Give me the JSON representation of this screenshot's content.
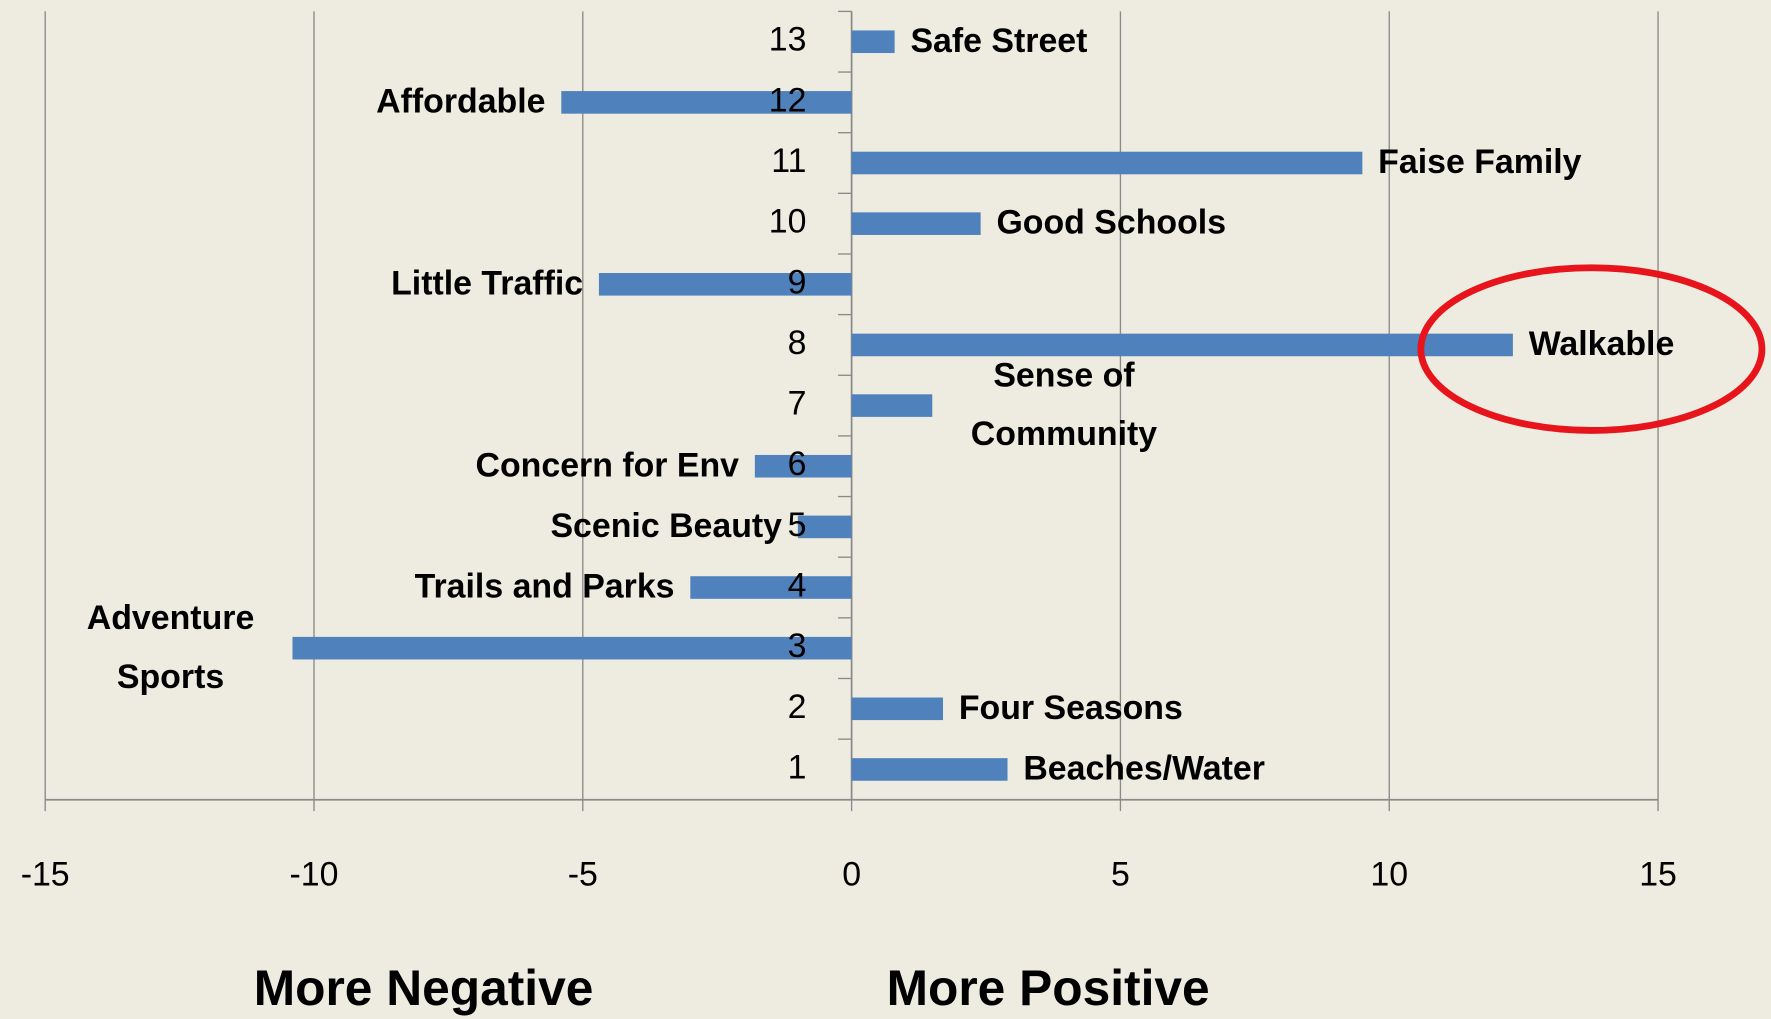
{
  "chart_data": {
    "type": "bar",
    "orientation": "horizontal",
    "categories": [
      "1",
      "2",
      "3",
      "4",
      "5",
      "6",
      "7",
      "8",
      "9",
      "10",
      "11",
      "12",
      "13"
    ],
    "values": [
      2.9,
      1.7,
      -10.4,
      -3.0,
      -1.0,
      -1.8,
      1.5,
      12.3,
      -4.7,
      2.4,
      9.5,
      -5.4,
      0.8
    ],
    "labels": [
      "Beaches/Water",
      "Four Seasons",
      "Adventure Sports",
      "Trails and Parks",
      "Scenic Beauty",
      "Concern for Env",
      "Sense of Community",
      "Walkable",
      "Little Traffic",
      "Good Schools",
      "Faise Family",
      "Affordable",
      "Safe Street"
    ],
    "color": "#4f81bd",
    "xlim": [
      -15,
      15
    ],
    "xticks": [
      -15,
      -10,
      -5,
      0,
      5,
      10,
      15
    ],
    "grid": true,
    "annotations": [
      "More Negative",
      "More Positive"
    ]
  }
}
